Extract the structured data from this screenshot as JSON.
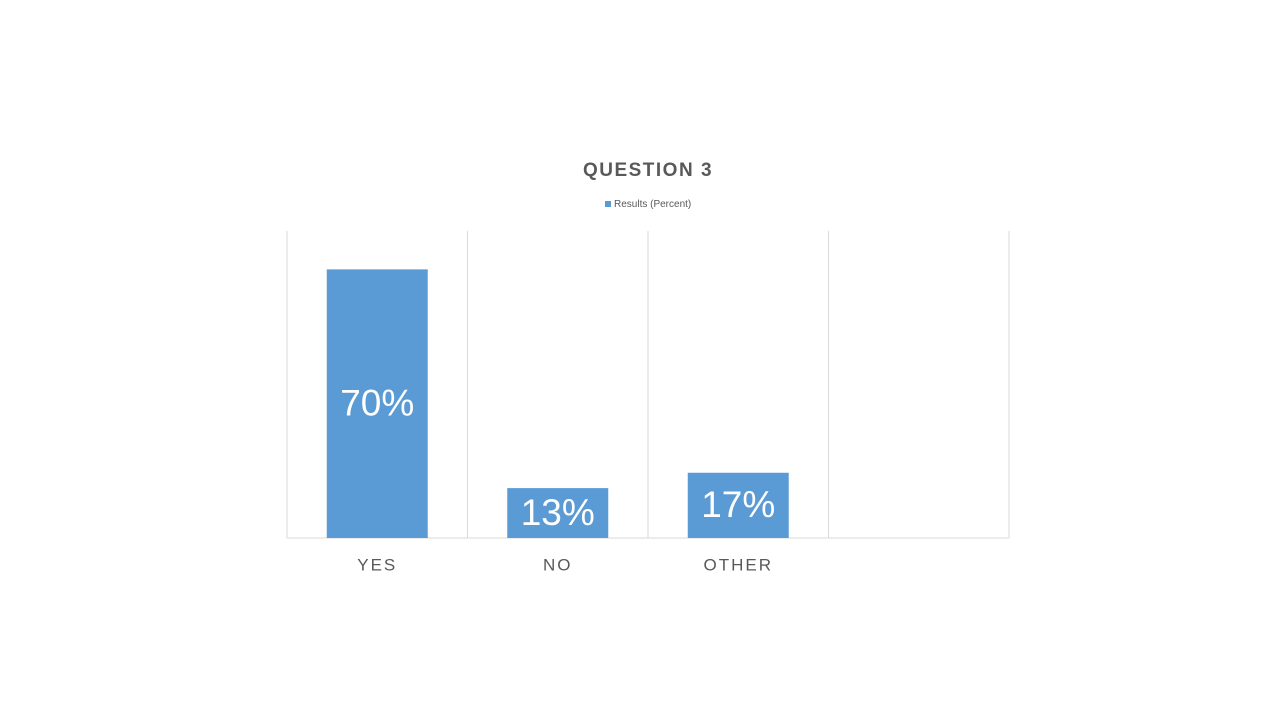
{
  "chart_data": {
    "type": "bar",
    "title": "QUESTION 3",
    "categories": [
      "YES",
      "NO",
      "OTHER",
      null
    ],
    "series": [
      {
        "name": "Results (Percent)",
        "color": "#5b9bd5",
        "values": [
          70,
          13,
          17,
          null
        ],
        "value_labels": [
          "70%",
          "13%",
          "17%",
          null
        ]
      }
    ],
    "ylim": [
      0,
      80
    ],
    "grid": true,
    "legend": "top"
  }
}
